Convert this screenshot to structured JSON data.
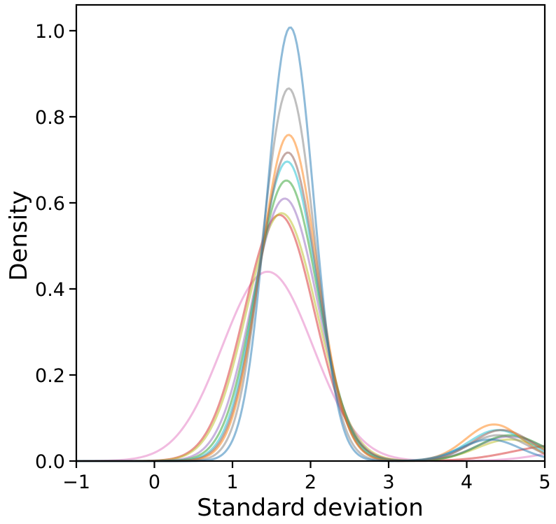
{
  "chart_data": {
    "type": "line",
    "title": "",
    "xlabel": "Standard deviation",
    "ylabel": "Density",
    "xlim": [
      -1,
      5
    ],
    "ylim": [
      0,
      1.06
    ],
    "x_ticks": [
      "−1",
      "0",
      "1",
      "2",
      "3",
      "4",
      "5"
    ],
    "y_ticks": [
      "0.0",
      "0.2",
      "0.4",
      "0.6",
      "0.8",
      "1.0"
    ],
    "grid": false,
    "legend": "none",
    "series": [
      {
        "color": "#e377c2",
        "peak_x": 1.45,
        "peak_y": 0.44,
        "width": 0.58,
        "bump_x": 5.6,
        "bump_y": 0.03,
        "bump_w": 0.55
      },
      {
        "color": "#d62728",
        "peak_x": 1.6,
        "peak_y": 0.572,
        "width": 0.45,
        "bump_x": 5.2,
        "bump_y": 0.037,
        "bump_w": 0.6
      },
      {
        "color": "#bcbd22",
        "peak_x": 1.63,
        "peak_y": 0.576,
        "width": 0.45,
        "bump_x": 4.55,
        "bump_y": 0.05,
        "bump_w": 0.42
      },
      {
        "color": "#9467bd",
        "peak_x": 1.67,
        "peak_y": 0.61,
        "width": 0.42,
        "bump_x": 4.55,
        "bump_y": 0.057,
        "bump_w": 0.42
      },
      {
        "color": "#2ca02c",
        "peak_x": 1.69,
        "peak_y": 0.652,
        "width": 0.4,
        "bump_x": 4.55,
        "bump_y": 0.06,
        "bump_w": 0.4
      },
      {
        "color": "#17becf",
        "peak_x": 1.7,
        "peak_y": 0.696,
        "width": 0.38,
        "bump_x": 4.4,
        "bump_y": 0.072,
        "bump_w": 0.38
      },
      {
        "color": "#8c564b",
        "peak_x": 1.71,
        "peak_y": 0.717,
        "width": 0.37,
        "bump_x": 4.45,
        "bump_y": 0.072,
        "bump_w": 0.38
      },
      {
        "color": "#ff7f0e",
        "peak_x": 1.72,
        "peak_y": 0.758,
        "width": 0.36,
        "bump_x": 4.35,
        "bump_y": 0.085,
        "bump_w": 0.36
      },
      {
        "color": "#7f7f7f",
        "peak_x": 1.72,
        "peak_y": 0.866,
        "width": 0.33,
        "bump_x": 4.4,
        "bump_y": 0.06,
        "bump_w": 0.38
      },
      {
        "color": "#1f77b4",
        "peak_x": 1.74,
        "peak_y": 1.008,
        "width": 0.3,
        "bump_x": 4.3,
        "bump_y": 0.05,
        "bump_w": 0.38
      }
    ]
  }
}
